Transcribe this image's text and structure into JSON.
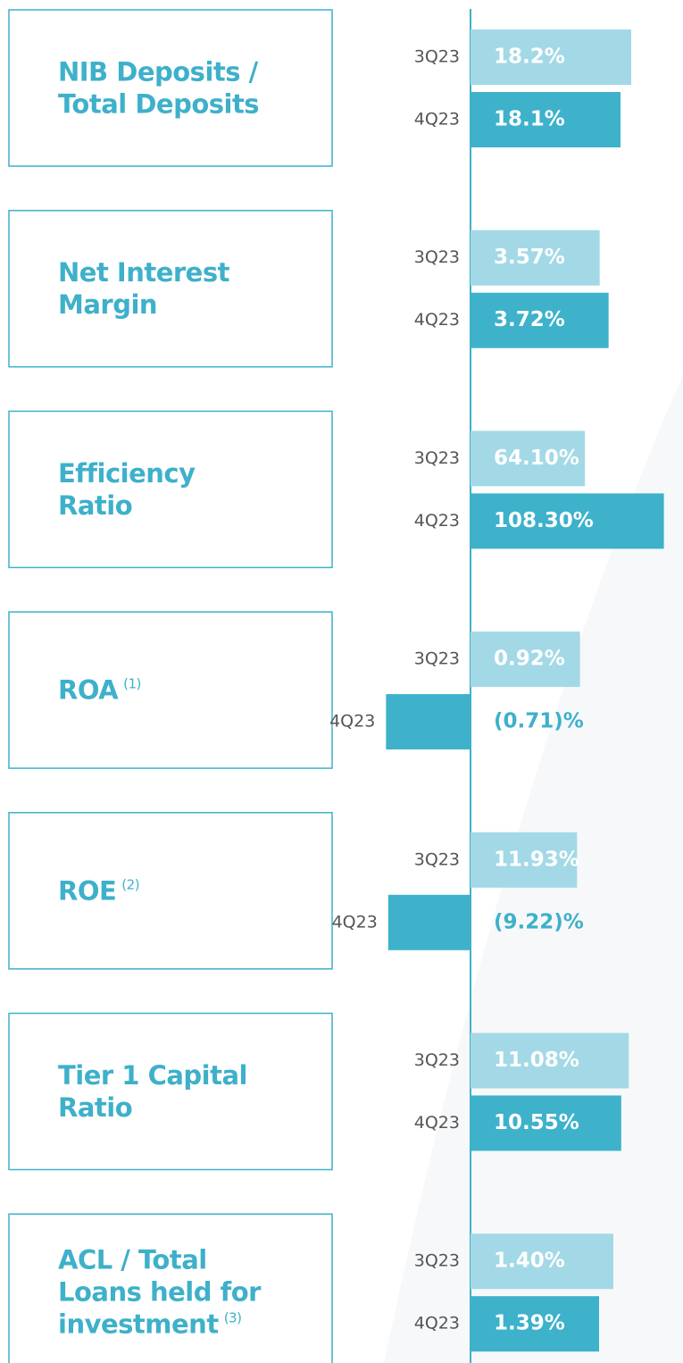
{
  "chart_data": [
    {
      "type": "bar",
      "title": [
        "NIB Deposits /",
        "Total Deposits"
      ],
      "categories": [
        "3Q23",
        "4Q23"
      ],
      "values": [
        18.2,
        18.1
      ],
      "value_labels": [
        "18.2%",
        "18.1%"
      ],
      "xlim": [
        16.7,
        18.7
      ],
      "colors": [
        "#a3d9e6",
        "#3eb1cb"
      ]
    },
    {
      "type": "bar",
      "title": [
        "Net Interest",
        "Margin"
      ],
      "categories": [
        "3Q23",
        "4Q23"
      ],
      "values": [
        3.57,
        3.72
      ],
      "value_labels": [
        "3.57%",
        "3.72%"
      ],
      "xlim": [
        1.4,
        5
      ],
      "colors": [
        "#a3d9e6",
        "#3eb1cb"
      ]
    },
    {
      "type": "bar",
      "title": [
        "Efficiency",
        "Ratio"
      ],
      "categories": [
        "3Q23",
        "4Q23"
      ],
      "values": [
        64.1,
        108.3
      ],
      "value_labels": [
        "64.10%",
        "108.30%"
      ],
      "xlim": [
        0,
        120
      ],
      "colors": [
        "#a3d9e6",
        "#3eb1cb"
      ]
    },
    {
      "type": "bar",
      "title": [
        "ROA"
      ],
      "note": "(1)",
      "categories": [
        "3Q23",
        "4Q23"
      ],
      "values": [
        0.92,
        -0.71
      ],
      "value_labels": [
        "0.92%",
        "(0.71)%"
      ],
      "xlim": [
        -0.8,
        1.8
      ],
      "colors": [
        "#a3d9e6",
        "#3eb1cb"
      ]
    },
    {
      "type": "bar",
      "title": [
        "ROE"
      ],
      "note": "(2)",
      "categories": [
        "3Q23",
        "4Q23"
      ],
      "values": [
        11.93,
        -9.22
      ],
      "value_labels": [
        "11.93%",
        "(9.22)%"
      ],
      "xlim": [
        -10,
        24
      ],
      "colors": [
        "#a3d9e6",
        "#3eb1cb"
      ]
    },
    {
      "type": "bar",
      "title": [
        "Tier 1 Capital",
        "Ratio"
      ],
      "categories": [
        "3Q23",
        "4Q23"
      ],
      "values": [
        11.08,
        10.55
      ],
      "value_labels": [
        "11.08%",
        "10.55%"
      ],
      "xlim": [
        0,
        15
      ],
      "colors": [
        "#a3d9e6",
        "#3eb1cb"
      ]
    },
    {
      "type": "bar",
      "title": [
        "ACL / Total",
        "Loans held for",
        "investment"
      ],
      "note": "(3)",
      "categories": [
        "3Q23",
        "4Q23"
      ],
      "values": [
        1.4,
        1.39
      ],
      "value_labels": [
        "1.40%",
        "1.39%"
      ],
      "xlim": [
        1.3,
        1.45
      ],
      "colors": [
        "#a3d9e6",
        "#3eb1cb"
      ]
    }
  ]
}
